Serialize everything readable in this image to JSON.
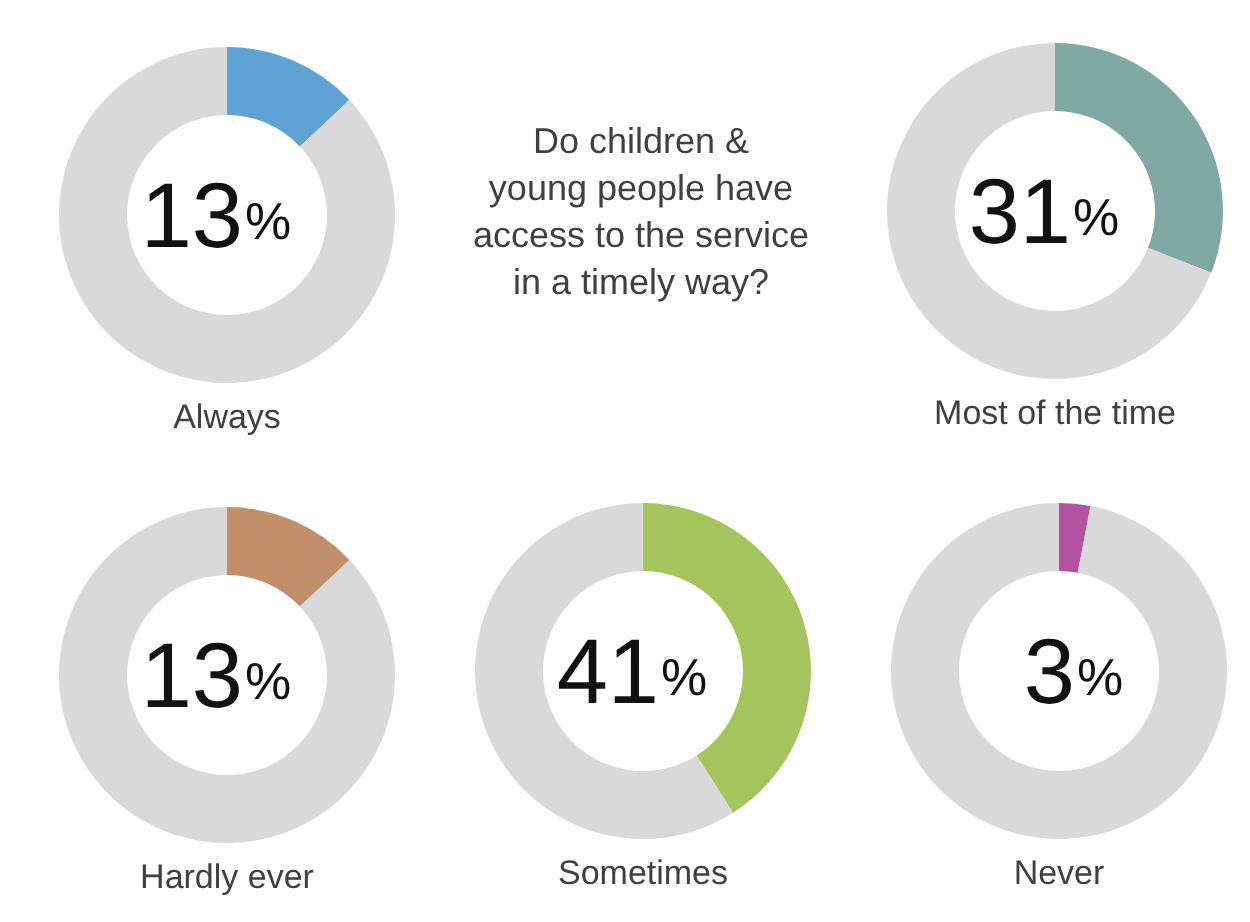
{
  "chart_data": [
    {
      "type": "other",
      "title": "Do children &\nyoung people have\naccess to the service\nin a timely way?"
    },
    {
      "type": "donut",
      "title": "Always",
      "categories": [
        null,
        null
      ],
      "values": [
        13,
        87
      ],
      "colors": [
        "#5ea3d3",
        "#d9d9d9"
      ],
      "annotations": [
        "13%"
      ]
    },
    {
      "type": "donut",
      "title": "Most of the time",
      "categories": [
        null,
        null
      ],
      "values": [
        31,
        69
      ],
      "colors": [
        "#80a9a6",
        "#d9d9d9"
      ],
      "annotations": [
        "31%"
      ]
    },
    {
      "type": "donut",
      "title": "Hardly ever",
      "categories": [
        null,
        null
      ],
      "values": [
        13,
        87
      ],
      "colors": [
        "#c1906b",
        "#d9d9d9"
      ],
      "annotations": [
        "13%"
      ]
    },
    {
      "type": "donut",
      "title": "Sometimes",
      "categories": [
        null,
        null
      ],
      "values": [
        41,
        59
      ],
      "colors": [
        "#a4c45c",
        "#d9d9d9"
      ],
      "annotations": [
        "41%"
      ]
    },
    {
      "type": "donut",
      "title": "Never",
      "categories": [
        null,
        null
      ],
      "values": [
        3,
        97
      ],
      "colors": [
        "#b452a2",
        "#d9d9d9"
      ],
      "annotations": [
        "3%"
      ]
    }
  ]
}
